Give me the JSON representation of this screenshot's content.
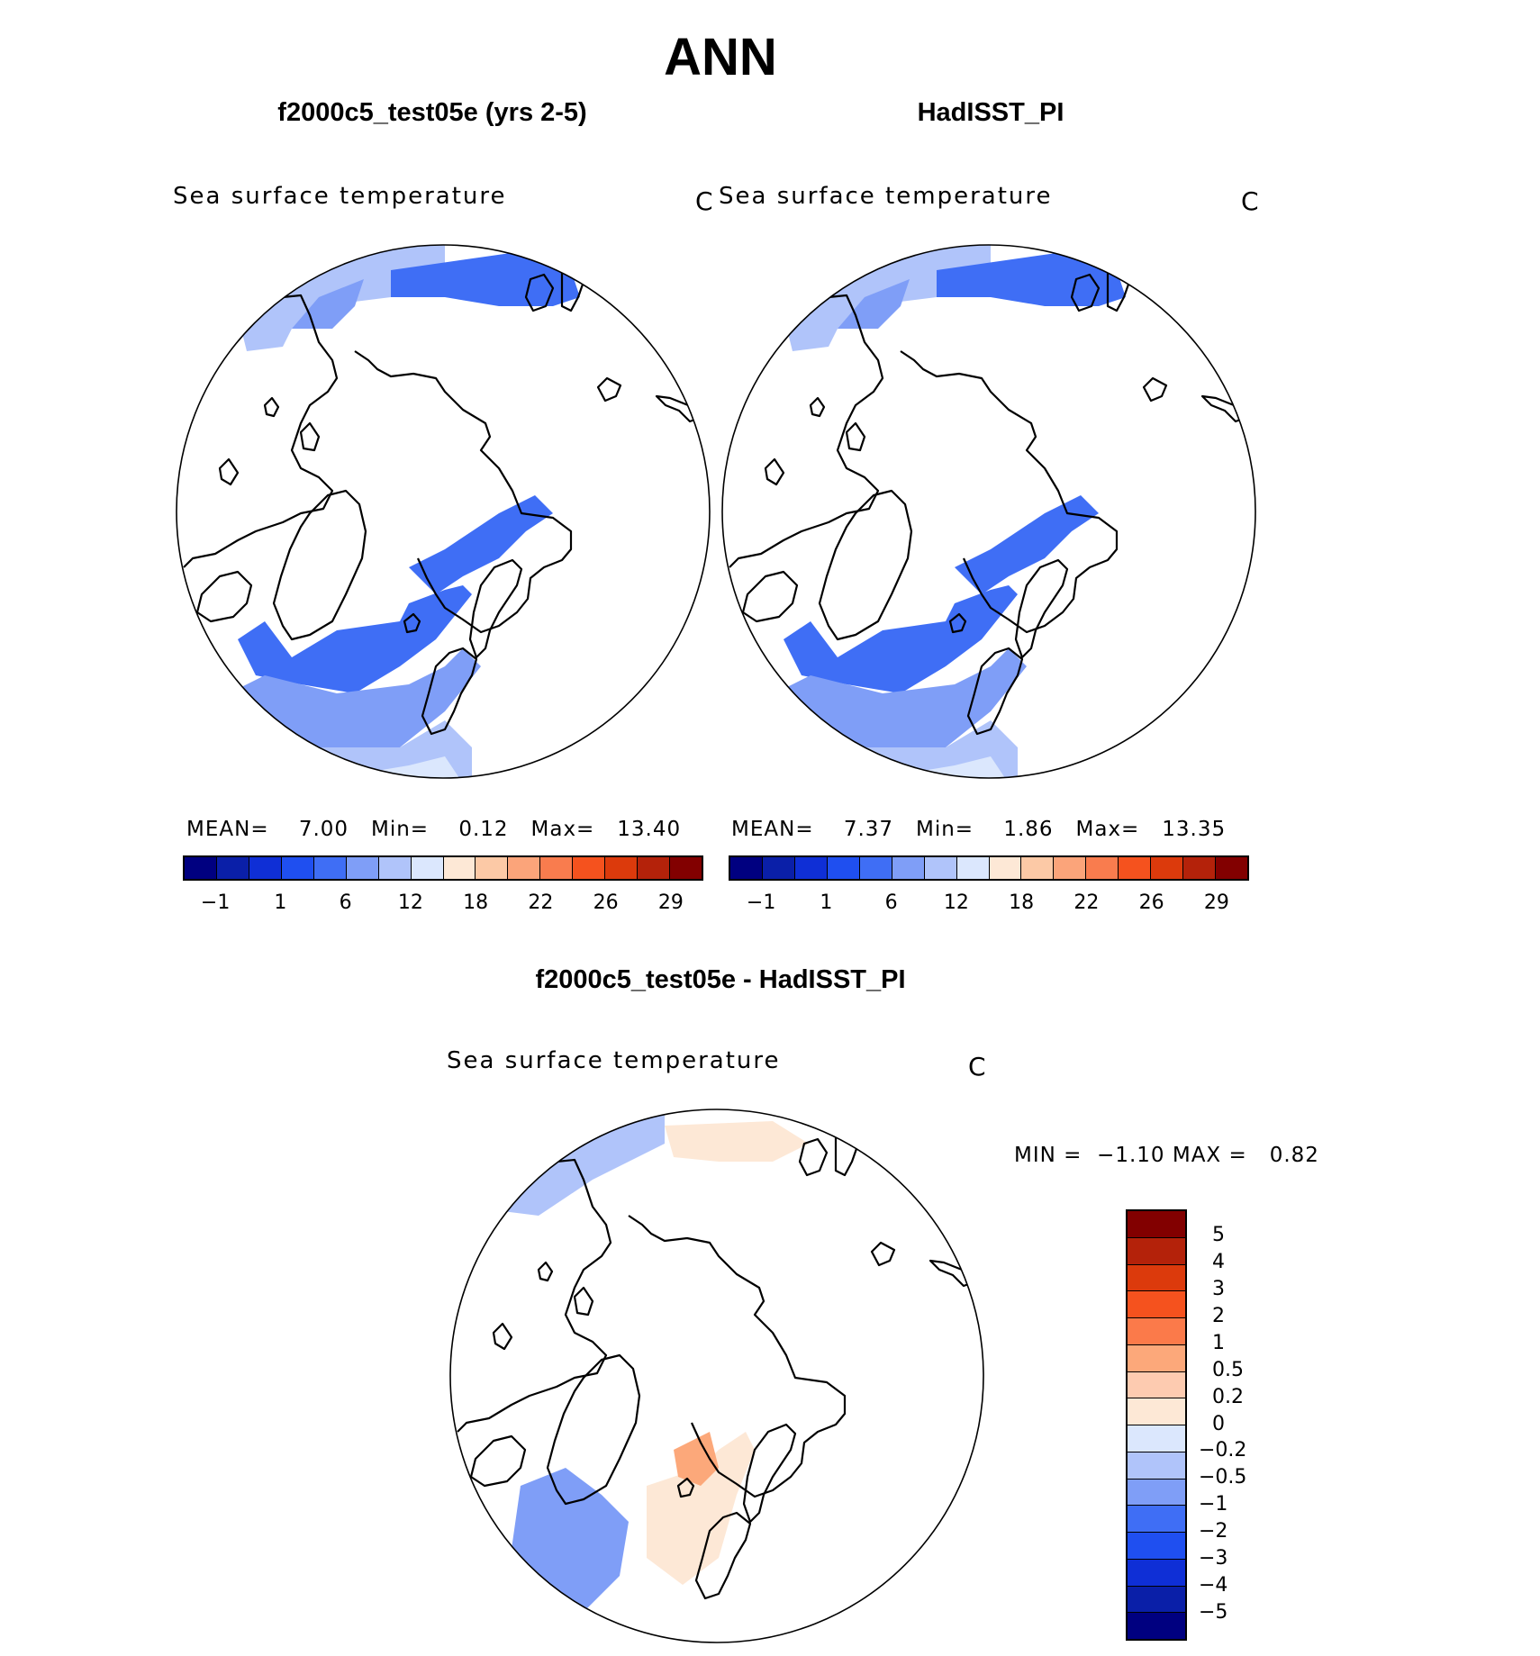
{
  "header": {
    "title": "ANN"
  },
  "panels": [
    {
      "title": "f2000c5_test05e (yrs 2-5)",
      "subtitle": "Sea surface temperature",
      "unit": "C",
      "stats": {
        "mean_label": "MEAN=",
        "mean": "7.00",
        "min_label": "Min=",
        "min": "0.12",
        "max_label": "Max=",
        "max": "13.40"
      }
    },
    {
      "title": "HadISST_PI",
      "subtitle": "Sea surface temperature",
      "unit": "C",
      "stats": {
        "mean_label": "MEAN=",
        "mean": "7.37",
        "min_label": "Min=",
        "min": "1.86",
        "max_label": "Max=",
        "max": "13.35"
      }
    }
  ],
  "diff": {
    "title": "f2000c5_test05e - HadISST_PI",
    "subtitle": "Sea surface temperature",
    "unit": "C",
    "min_label": "MIN =",
    "min": "−1.10",
    "max_label": "MAX =",
    "max": "0.82"
  },
  "chart_data": [
    {
      "type": "heatmap",
      "projection": "north-polar-stereographic",
      "title": "f2000c5_test05e (yrs 2-5)",
      "subtitle": "Sea surface temperature",
      "units": "C",
      "mean": 7.0,
      "min": 0.12,
      "max": 13.4,
      "colorbar_ticks": [
        "−1",
        "1",
        "6",
        "12",
        "18",
        "22",
        "26",
        "29"
      ]
    },
    {
      "type": "heatmap",
      "projection": "north-polar-stereographic",
      "title": "HadISST_PI",
      "subtitle": "Sea surface temperature",
      "units": "C",
      "mean": 7.37,
      "min": 1.86,
      "max": 13.35,
      "colorbar_ticks": [
        "−1",
        "1",
        "6",
        "12",
        "18",
        "22",
        "26",
        "29"
      ]
    },
    {
      "type": "heatmap",
      "projection": "north-polar-stereographic",
      "title": "f2000c5_test05e - HadISST_PI",
      "subtitle": "Sea surface temperature",
      "units": "C",
      "min": -1.1,
      "max": 0.82,
      "colorbar_ticks": [
        "5",
        "4",
        "3",
        "2",
        "1",
        "0.5",
        "0.2",
        "0",
        "−0.2",
        "−0.5",
        "−1",
        "−2",
        "−3",
        "−4",
        "−5"
      ]
    }
  ],
  "colors": {
    "abs_scale": [
      "#000080",
      "#0a1fa8",
      "#0f2fd6",
      "#1f4ff0",
      "#3f6ef5",
      "#7f9ef7",
      "#b0c4fa",
      "#dbe7fd",
      "#fde8d6",
      "#fcc9a6",
      "#fba47a",
      "#f97c4e",
      "#f5521e",
      "#dc3a0c",
      "#b4220a",
      "#820000"
    ],
    "diff_scale": [
      "#820000",
      "#b4220a",
      "#dc3a0c",
      "#f5521e",
      "#fb7a4a",
      "#fca87a",
      "#fdcbb0",
      "#fde8d6",
      "#dbe7fd",
      "#b0c4fa",
      "#7f9ef7",
      "#3f6ef5",
      "#1f4ff0",
      "#0f2fd6",
      "#0a1fa8",
      "#000080"
    ]
  }
}
